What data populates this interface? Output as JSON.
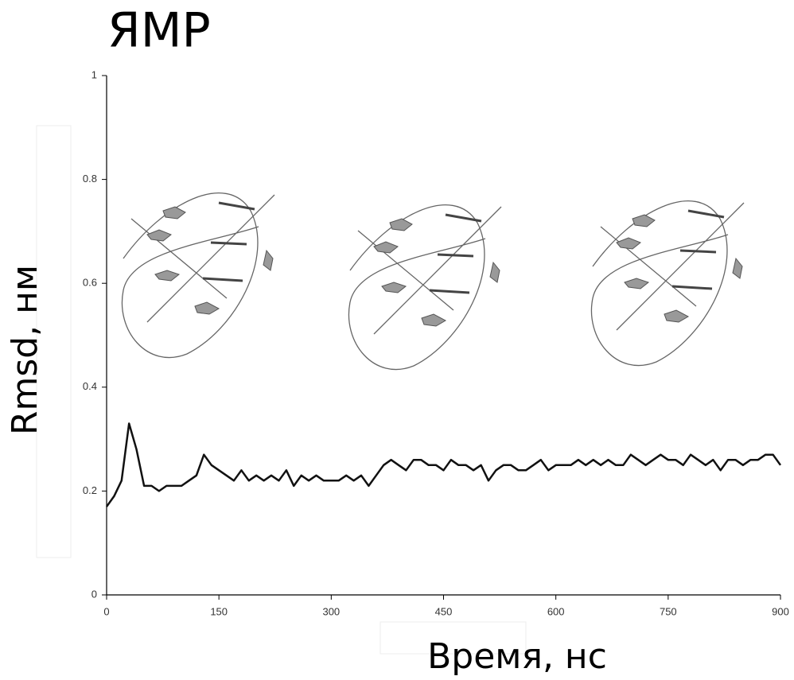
{
  "chart_data": {
    "type": "line",
    "title": "ЯМР",
    "x_label": "Время, нс",
    "y_label": "Rmsd, нм",
    "x": [
      0,
      10,
      20,
      30,
      40,
      50,
      60,
      70,
      80,
      90,
      100,
      110,
      120,
      130,
      140,
      150,
      160,
      170,
      180,
      190,
      200,
      210,
      220,
      230,
      240,
      250,
      260,
      270,
      280,
      290,
      300,
      310,
      320,
      330,
      340,
      350,
      360,
      370,
      380,
      390,
      400,
      410,
      420,
      430,
      440,
      450,
      460,
      470,
      480,
      490,
      500,
      510,
      520,
      530,
      540,
      550,
      560,
      570,
      580,
      590,
      600,
      610,
      620,
      630,
      640,
      650,
      660,
      670,
      680,
      690,
      700,
      710,
      720,
      730,
      740,
      750,
      760,
      770,
      780,
      790,
      800,
      810,
      820,
      830,
      840,
      850,
      860,
      870,
      880,
      890,
      900
    ],
    "values": [
      0.17,
      0.19,
      0.22,
      0.33,
      0.28,
      0.21,
      0.21,
      0.2,
      0.21,
      0.21,
      0.21,
      0.22,
      0.23,
      0.27,
      0.25,
      0.24,
      0.23,
      0.22,
      0.24,
      0.22,
      0.23,
      0.22,
      0.23,
      0.22,
      0.24,
      0.21,
      0.23,
      0.22,
      0.23,
      0.22,
      0.22,
      0.22,
      0.23,
      0.22,
      0.23,
      0.21,
      0.23,
      0.25,
      0.26,
      0.25,
      0.24,
      0.26,
      0.26,
      0.25,
      0.25,
      0.24,
      0.26,
      0.25,
      0.25,
      0.24,
      0.25,
      0.22,
      0.24,
      0.25,
      0.25,
      0.24,
      0.24,
      0.25,
      0.26,
      0.24,
      0.25,
      0.25,
      0.25,
      0.26,
      0.25,
      0.26,
      0.25,
      0.26,
      0.25,
      0.25,
      0.27,
      0.26,
      0.25,
      0.26,
      0.27,
      0.26,
      0.26,
      0.25,
      0.27,
      0.26,
      0.25,
      0.26,
      0.24,
      0.26,
      0.26,
      0.25,
      0.26,
      0.26,
      0.27,
      0.27,
      0.25
    ],
    "color": "#111111",
    "xlim": [
      0,
      900
    ],
    "xticks": [
      0,
      150,
      300,
      450,
      600,
      750,
      900
    ],
    "ylim": [
      0,
      1
    ],
    "yticks": [
      0,
      0.2,
      0.4,
      0.6,
      0.8,
      1
    ]
  }
}
